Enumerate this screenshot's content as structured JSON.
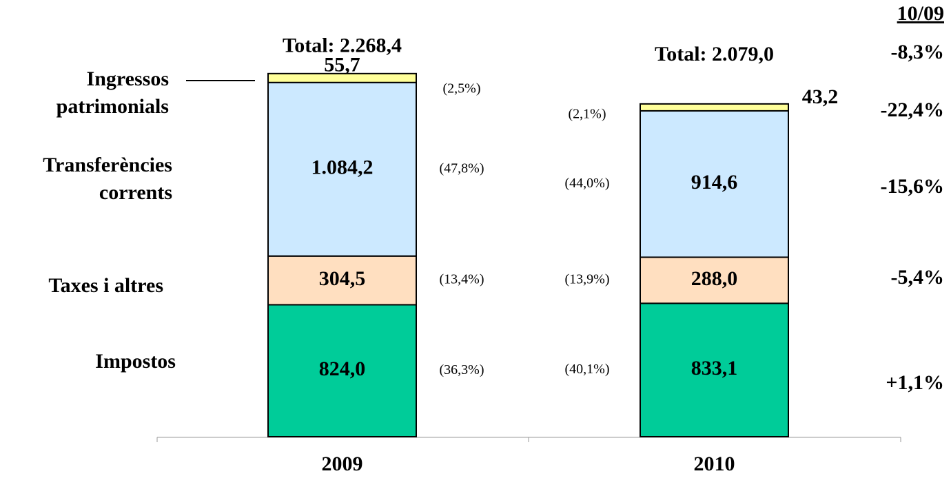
{
  "chart_data": {
    "type": "bar",
    "stacked": true,
    "categories": [
      "2009",
      "2010"
    ],
    "totals": [
      "Total: 2.268,4",
      "Total: 2.079,0"
    ],
    "change_header": "10/09",
    "total_change": "-8,3%",
    "ylim": [
      0,
      2500
    ],
    "series": [
      {
        "name": "Impostos",
        "color": "#00cc99",
        "values": [
          824.0,
          833.1
        ],
        "value_labels": [
          "824,0",
          "833,1"
        ],
        "share_labels": [
          "(36,3%)",
          "(40,1%)"
        ],
        "change": "+1,1%"
      },
      {
        "name": "Taxes i altres",
        "color": "#ffdfc0",
        "values": [
          304.5,
          288.0
        ],
        "value_labels": [
          "304,5",
          "288,0"
        ],
        "share_labels": [
          "(13,4%)",
          "(13,9%)"
        ],
        "change": "-5,4%"
      },
      {
        "name": "Transferències corrents",
        "color": "#cce9ff",
        "values": [
          1084.2,
          914.6
        ],
        "value_labels": [
          "1.084,2",
          "914,6"
        ],
        "share_labels": [
          "(47,8%)",
          "(44,0%)"
        ],
        "change": "-15,6%"
      },
      {
        "name": "Ingressos patrimonials",
        "color": "#ffff99",
        "values": [
          55.7,
          43.2
        ],
        "value_labels": [
          "55,7",
          "43,2"
        ],
        "share_labels": [
          "(2,5%)",
          "(2,1%)"
        ],
        "change": "-22,4%"
      }
    ]
  }
}
